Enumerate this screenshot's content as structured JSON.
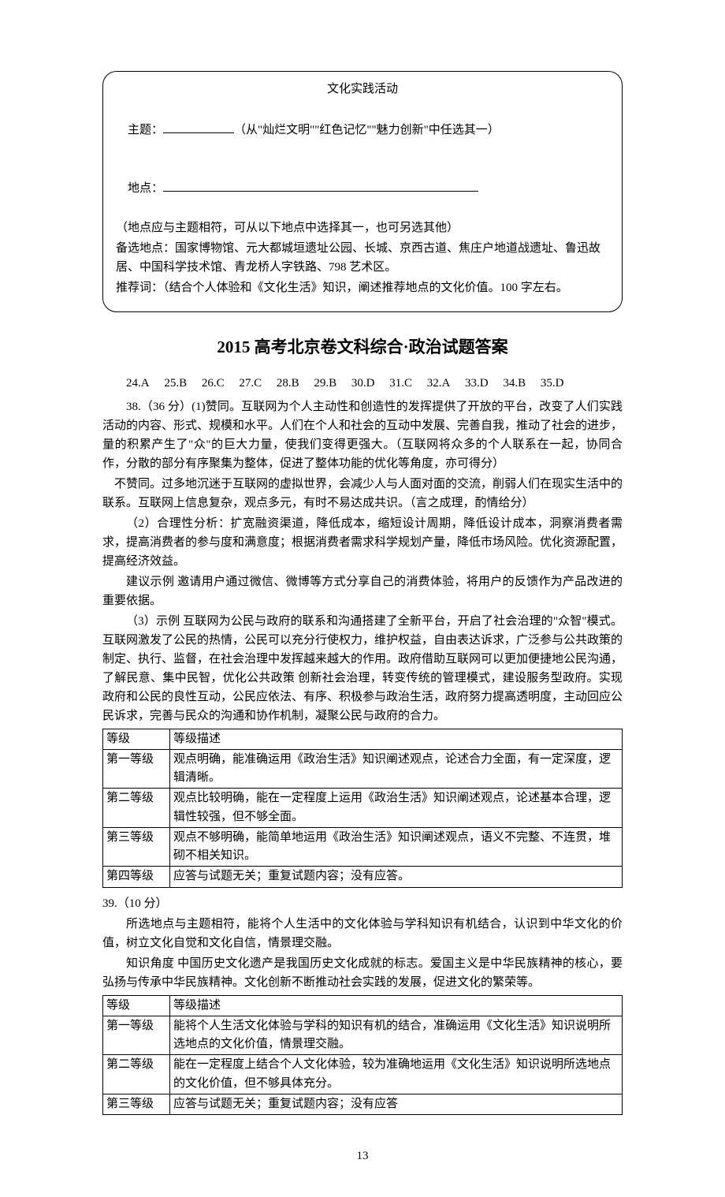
{
  "box": {
    "title": "文化实践活动",
    "line_subject_prefix": "主题：",
    "line_subject_suffix": "（从\"灿烂文明\"\"红色记忆\"\"魅力创新\"中任选其一）",
    "line_place_prefix": "地点：",
    "line_place_note": "（地点应与主题相符，可从以下地点中选择其一，也可另选其他）",
    "line_backup": "备选地点：国家博物馆、元大都城垣遗址公园、长城、京西古道、焦庄户地道战遗址、鲁迅故居、中国科学技术馆、青龙桥人字铁路、798 艺术区。",
    "line_recommend": "推荐词：（结合个人体验和《文化生活》知识，阐述推荐地点的文化价值。100 字左右。"
  },
  "answer_title": "2015 高考北京卷文科综合·政治试题答案",
  "mc": "24.A  25.B  26.C  27.C  28.B  29.B  30.D  31.C  32.A  33.D  34.B  35.D",
  "q38": {
    "p1": "38.（36 分）(1)赞同。互联网为个人主动性和创造性的发挥提供了开放的平台，改变了人们实践活动的内容、形式、规模和水平。人们在个人和社会的互动中发展、完善自我，推动了社会的进步，量的积累产生了\"众\"的巨大力量，使我们变得更强大。（互联网将众多的个人联系在一起，协同合作，分散的部分有序聚集为整体，促进了整体功能的优化等角度，亦可得分）",
    "p2": "不赞同。过多地沉迷于互联网的虚拟世界，会减少人与人面对面的交流，削弱人们在现实生活中的联系。互联网上信息复杂，观点多元，有时不易达成共识。（言之成理，酌情给分）",
    "p3": "（2）合理性分析：扩宽融资渠道，降低成本，缩短设计周期，降低设计成本，洞察消费者需求，提高消费者的参与度和满意度；根据消费者需求科学规划产量，降低市场风险。优化资源配置，提高经济效益。",
    "p4": "建议示例  邀请用户通过微信、微博等方式分享自己的消费体验，将用户的反馈作为产品改进的重要依据。",
    "p5": "（3）示例  互联网为公民与政府的联系和沟通搭建了全新平台，开启了社会治理的\"众智\"模式。互联网激发了公民的热情，公民可以充分行使权力，维护权益，自由表达诉求，广泛参与公共政策的制定、执行、监督，在社会治理中发挥越来越大的作用。政府借助互联网可以更加便捷地公民沟通，了解民意、集中民智，优化公共政策  创新社会治理，转变传统的管理模式，建设服务型政府。实现政府和公民的良性互动，公民应依法、有序、积极参与政治生活，政府努力提高透明度，主动回应公民诉求，完善与民众的沟通和协作机制，凝聚公民与政府的合力。"
  },
  "table1": {
    "header": [
      "等级",
      "等级描述"
    ],
    "rows": [
      [
        "第一等级",
        "观点明确，能准确运用《政治生活》知识阐述观点，论述合力全面，有一定深度，逻辑清晰。"
      ],
      [
        "第二等级",
        "观点比较明确，能在一定程度上运用《政治生活》知识阐述观点，论述基本合理，逻辑性较强，但不够全面。"
      ],
      [
        "第三等级",
        "观点不够明确，能简单地运用《政治生活》知识阐述观点，语义不完整、不连贯，堆砌不相关知识。"
      ],
      [
        "第四等级",
        "应答与试题无关；重复试题内容；没有应答。"
      ]
    ]
  },
  "q39": {
    "head": "39.（10 分）",
    "p1": "所选地点与主题相符，能将个人生活中的文化体验与学科知识有机结合，认识到中华文化的价值，树立文化自觉和文化自信，情景理交融。",
    "p2": "知识角度  中国历史文化遗产是我国历史文化成就的标志。爱国主义是中华民族精神的核心，要弘扬与传承中华民族精神。文化创新不断推动社会实践的发展，促进文化的繁荣等。"
  },
  "table2": {
    "header": [
      "等级",
      "等级描述"
    ],
    "rows": [
      [
        "第一等级",
        "能将个人生活文化体验与学科的知识有机的结合，准确运用《文化生活》知识说明所选地点的文化价值，情景理交融。"
      ],
      [
        "第二等级",
        "能在一定程度上结合个人文化体验，较为准确地运用《文化生活》知识说明所选地点的文化价值，但不够具体充分。"
      ],
      [
        "第三等级",
        "应答与试题无关；重复试题内容；没有应答"
      ]
    ]
  },
  "page_num": "13",
  "colors": {
    "text": "#000000",
    "bg": "#ffffff",
    "border": "#000000"
  }
}
